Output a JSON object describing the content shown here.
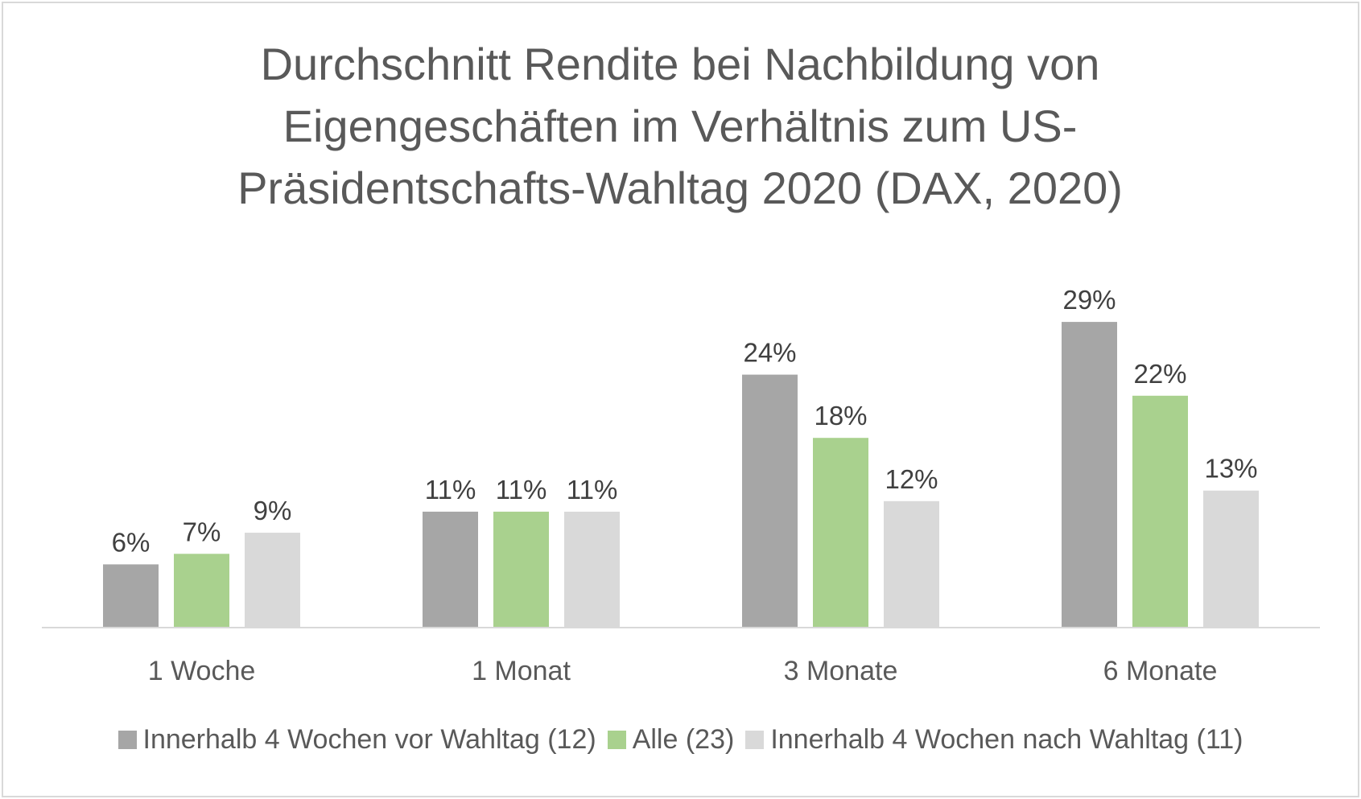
{
  "chart_data": {
    "type": "bar",
    "title_lines": [
      "Durchschnitt Rendite bei Nachbildung von",
      "Eigengeschäften im Verhältnis zum US-",
      "Präsidentschafts-Wahltag 2020 (DAX, 2020)"
    ],
    "categories": [
      "1 Woche",
      "1 Monat",
      "3 Monate",
      "6 Monate"
    ],
    "series": [
      {
        "name": "Innerhalb 4 Wochen vor Wahltag (12)",
        "color": "#a6a6a6",
        "values": [
          6,
          11,
          24,
          29
        ],
        "labels": [
          "6%",
          "11%",
          "24%",
          "29%"
        ]
      },
      {
        "name": "Alle (23)",
        "color": "#a9d18e",
        "values": [
          7,
          11,
          18,
          22
        ],
        "labels": [
          "7%",
          "11%",
          "18%",
          "22%"
        ]
      },
      {
        "name": "Innerhalb 4 Wochen nach Wahltag (11)",
        "color": "#d9d9d9",
        "values": [
          9,
          11,
          12,
          13
        ],
        "labels": [
          "9%",
          "11%",
          "12%",
          "13%"
        ]
      }
    ],
    "xlabel": "",
    "ylabel": "",
    "ylim": [
      0,
      30
    ],
    "grid": false,
    "legend_position": "bottom"
  }
}
